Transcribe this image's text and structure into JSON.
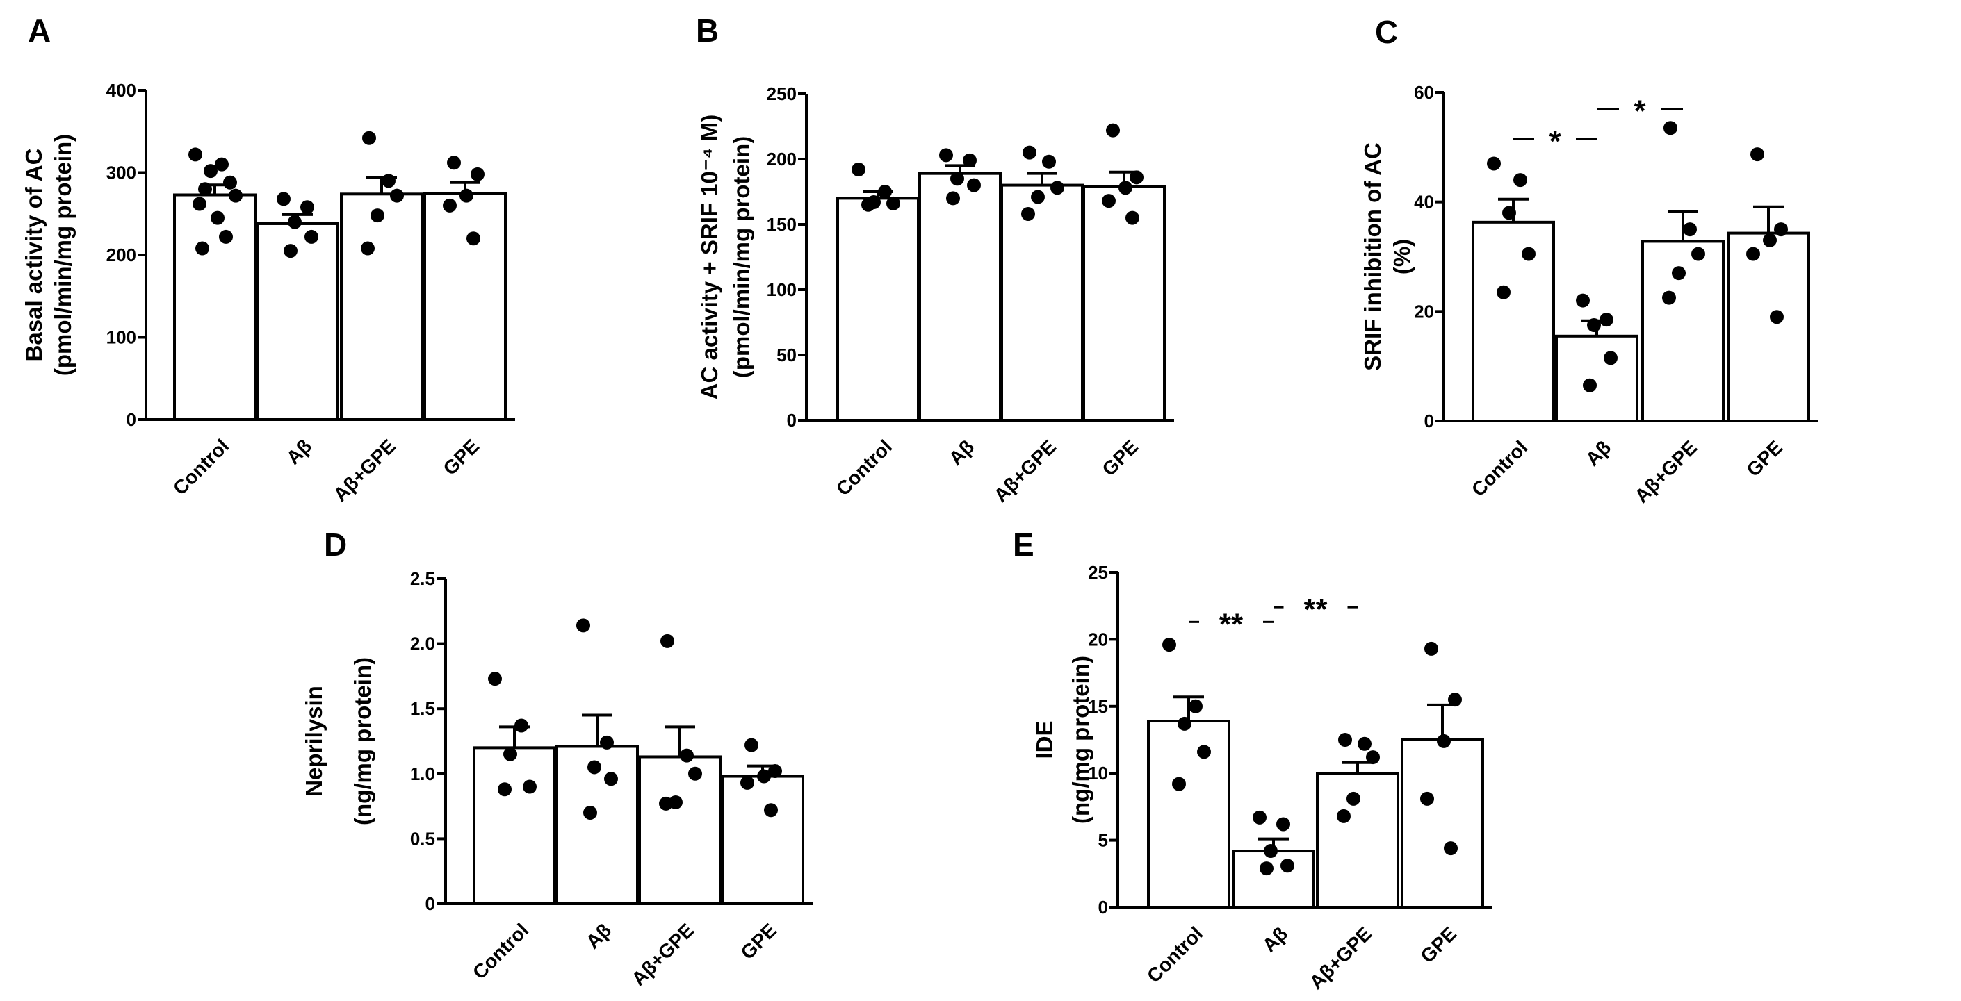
{
  "chart_data": [
    {
      "panel": "A",
      "type": "bar",
      "categories": [
        "Control",
        "Aβ",
        "Aβ+GPE",
        "GPE"
      ],
      "ylabel": [
        "Basal activity of AC",
        "(pmol/min/mg protein)"
      ],
      "ylim": [
        0,
        400
      ],
      "yticks": [
        0,
        100,
        200,
        300,
        400
      ],
      "ytick_labels": [
        "0",
        "100",
        "200",
        "300",
        "400"
      ],
      "means": [
        273,
        238,
        274,
        275
      ],
      "sem": [
        12,
        11,
        20,
        13
      ],
      "points": [
        [
          322,
          310,
          302,
          288,
          280,
          272,
          262,
          245,
          222,
          208
        ],
        [
          268,
          258,
          240,
          222,
          205
        ],
        [
          342,
          290,
          272,
          248,
          208
        ],
        [
          312,
          298,
          272,
          260,
          220
        ]
      ],
      "significance": []
    },
    {
      "panel": "B",
      "type": "bar",
      "categories": [
        "Control",
        "Aβ",
        "Aβ+GPE",
        "GPE"
      ],
      "ylabel": [
        "AC activity + SRIF 10⁻⁴ M)",
        "(pmol/min/mg protein)"
      ],
      "ylim": [
        0,
        250
      ],
      "yticks": [
        0,
        50,
        100,
        150,
        200,
        250
      ],
      "ytick_labels": [
        "0",
        "50",
        "100",
        "150",
        "200",
        "250"
      ],
      "means": [
        170,
        189,
        180,
        179
      ],
      "sem": [
        5,
        6,
        9,
        11
      ],
      "points": [
        [
          192,
          175,
          167,
          166,
          165
        ],
        [
          203,
          199,
          185,
          180,
          170
        ],
        [
          205,
          198,
          178,
          171,
          158
        ],
        [
          222,
          186,
          178,
          168,
          155
        ]
      ],
      "significance": []
    },
    {
      "panel": "C",
      "type": "bar",
      "categories": [
        "Control",
        "Aβ",
        "Aβ+GPE",
        "GPE"
      ],
      "ylabel": [
        "SRIF inhibition of AC",
        "(%)"
      ],
      "ylim": [
        0,
        60
      ],
      "yticks": [
        0,
        20,
        40,
        60
      ],
      "ytick_labels": [
        "0",
        "20",
        "40",
        "60"
      ],
      "means": [
        36.3,
        15.5,
        32.8,
        34.3
      ],
      "sem": [
        4.2,
        2.8,
        5.5,
        4.8
      ],
      "points": [
        [
          47,
          44,
          38,
          30.5,
          23.5
        ],
        [
          22,
          18.5,
          17.5,
          11.5,
          6.5
        ],
        [
          53.5,
          35,
          30.5,
          27,
          22.5
        ],
        [
          48.7,
          35,
          33,
          30.5,
          19
        ]
      ],
      "significance": [
        {
          "from": 0,
          "to": 1,
          "y": 51.5,
          "label": "*"
        },
        {
          "from": 1,
          "to": 2,
          "y": 57,
          "label": "*"
        }
      ]
    },
    {
      "panel": "D",
      "type": "bar",
      "categories": [
        "Control",
        "Aβ",
        "Aβ+GPE",
        "GPE"
      ],
      "ylabel": [
        "Neprilysin",
        "(ng/mg protein)"
      ],
      "ylim": [
        0,
        2.5
      ],
      "yticks": [
        0,
        0.5,
        1.0,
        1.5,
        2.0,
        2.5
      ],
      "ytick_labels": [
        "0",
        "0.5",
        "1.0",
        "1.5",
        "2.0",
        "2.5"
      ],
      "means": [
        1.2,
        1.21,
        1.13,
        0.98
      ],
      "sem": [
        0.16,
        0.24,
        0.23,
        0.08
      ],
      "points": [
        [
          1.73,
          1.37,
          1.15,
          0.9,
          0.88
        ],
        [
          2.14,
          1.24,
          1.05,
          0.96,
          0.7
        ],
        [
          2.02,
          1.14,
          1.0,
          0.78,
          0.77
        ],
        [
          1.22,
          1.02,
          0.98,
          0.93,
          0.72
        ]
      ],
      "significance": []
    },
    {
      "panel": "E",
      "type": "bar",
      "categories": [
        "Control",
        "Aβ",
        "Aβ+GPE",
        "GPE"
      ],
      "ylabel": [
        "IDE",
        "(ng/mg protein)"
      ],
      "ylim": [
        0,
        25
      ],
      "yticks": [
        0,
        5,
        10,
        15,
        20,
        25
      ],
      "ytick_labels": [
        "0",
        "5",
        "10",
        "15",
        "20",
        "25"
      ],
      "means": [
        13.9,
        4.2,
        10.0,
        12.5
      ],
      "sem": [
        1.8,
        0.9,
        0.8,
        2.6
      ],
      "points": [
        [
          19.6,
          15.0,
          13.7,
          11.6,
          9.2
        ],
        [
          6.7,
          6.2,
          4.2,
          3.1,
          2.9
        ],
        [
          12.5,
          12.2,
          11.2,
          8.1,
          6.8
        ],
        [
          19.3,
          15.5,
          12.4,
          8.1,
          4.4
        ]
      ],
      "significance": [
        {
          "from": 0,
          "to": 1,
          "y": 21.3,
          "label": "**"
        },
        {
          "from": 1,
          "to": 2,
          "y": 22.4,
          "label": "**"
        }
      ]
    }
  ]
}
